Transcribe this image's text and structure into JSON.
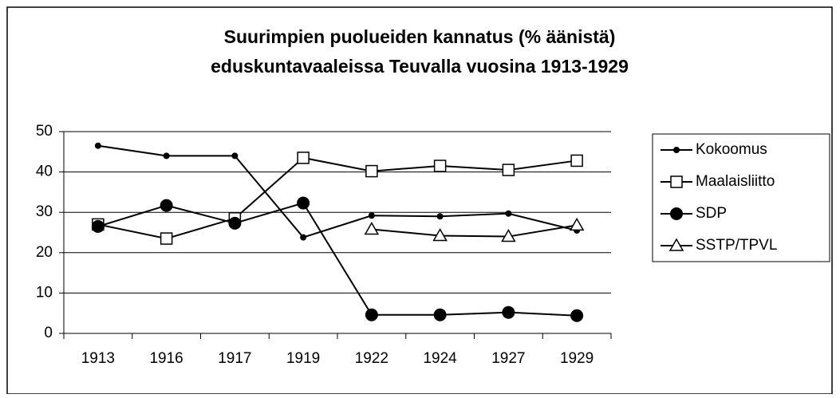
{
  "chart_data": {
    "type": "line",
    "title": [
      "Suurimpien puolueiden kannatus (% äänistä)",
      "eduskuntavaaleissa Teuvalla vuosina 1913-1929"
    ],
    "categories": [
      "1913",
      "1916",
      "1917",
      "1919",
      "1922",
      "1924",
      "1927",
      "1929"
    ],
    "series": [
      {
        "name": "Kokoomus",
        "color": "#000000",
        "marker": "dot",
        "values": [
          46.5,
          44,
          44,
          23.8,
          29.2,
          29,
          29.7,
          25.5
        ]
      },
      {
        "name": "Maalaisliitto",
        "color": "#000000",
        "marker": "square",
        "values": [
          27,
          23.5,
          28.5,
          43.5,
          40.2,
          41.5,
          40.5,
          42.8
        ]
      },
      {
        "name": "SDP",
        "color": "#000000",
        "marker": "circle",
        "values": [
          26.5,
          31.7,
          27.3,
          32.3,
          4.6,
          4.6,
          5.2,
          4.4
        ]
      },
      {
        "name": "SSTP/TPVL",
        "color": "#000000",
        "marker": "triangle",
        "values": [
          null,
          null,
          null,
          null,
          25.8,
          24.2,
          24,
          26.8
        ]
      }
    ],
    "ylim": [
      0,
      50
    ],
    "yticks": [
      0,
      10,
      20,
      30,
      40,
      50
    ],
    "grid": true,
    "legend": "right"
  }
}
